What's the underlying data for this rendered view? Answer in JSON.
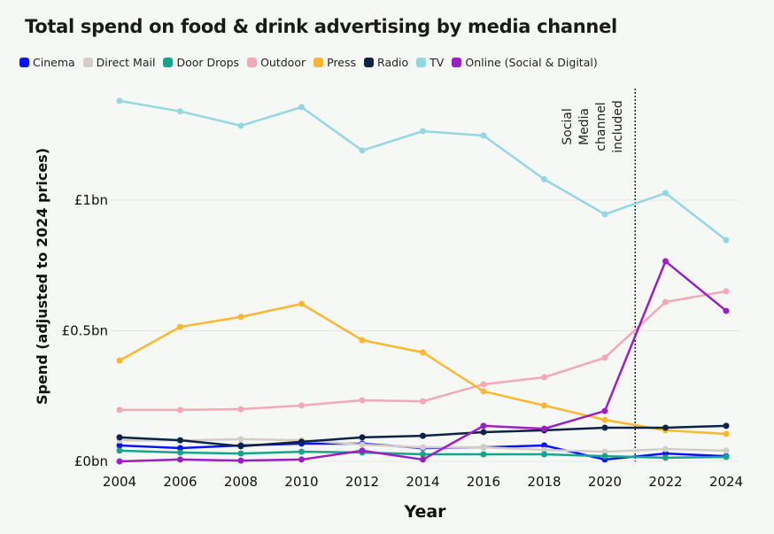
{
  "chart_data": {
    "type": "line",
    "title": "Total spend on food & drink advertising by media channel",
    "xlabel": "Year",
    "ylabel": "Spend (adjusted to 2024 prices)",
    "x": [
      2004,
      2006,
      2008,
      2010,
      2012,
      2014,
      2016,
      2018,
      2020,
      2022,
      2024
    ],
    "xlim": [
      2004,
      2024
    ],
    "ylim": [
      0,
      1.4
    ],
    "yticks": [
      0,
      0.5,
      1
    ],
    "ytick_labels": [
      "£0bn",
      "£0.5bn",
      "£1bn"
    ],
    "xtick_labels": [
      "2004",
      "2006",
      "2008",
      "2010",
      "2012",
      "2014",
      "2016",
      "2018",
      "2020",
      "2022",
      "2024"
    ],
    "grid": "horizontal",
    "legend_placement": "top",
    "annotation": {
      "x": 2021,
      "text_lines": [
        "Social",
        "Media",
        "channel",
        "included"
      ],
      "style": "dotted vertical line"
    },
    "series": [
      {
        "name": "Cinema",
        "color": "#0a14f0",
        "values": [
          0.061,
          0.051,
          0.061,
          0.068,
          0.068,
          0.051,
          0.054,
          0.061,
          0.007,
          0.03,
          0.02
        ]
      },
      {
        "name": "Direct Mail",
        "color": "#d3cdc5",
        "values": [
          0.08,
          0.08,
          0.085,
          0.081,
          0.064,
          0.054,
          0.054,
          0.044,
          0.037,
          0.047,
          0.041
        ]
      },
      {
        "name": "Door Drops",
        "color": "#17a589",
        "values": [
          0.041,
          0.034,
          0.03,
          0.037,
          0.034,
          0.027,
          0.027,
          0.027,
          0.02,
          0.014,
          0.017
        ]
      },
      {
        "name": "Outdoor",
        "color": "#f4a7b9",
        "values": [
          0.197,
          0.197,
          0.2,
          0.214,
          0.234,
          0.23,
          0.295,
          0.322,
          0.397,
          0.61,
          0.651
        ]
      },
      {
        "name": "Press",
        "color": "#fbb731",
        "values": [
          0.386,
          0.515,
          0.553,
          0.603,
          0.464,
          0.417,
          0.268,
          0.214,
          0.159,
          0.119,
          0.105
        ]
      },
      {
        "name": "Radio",
        "color": "#0d2346",
        "values": [
          0.092,
          0.081,
          0.058,
          0.075,
          0.092,
          0.098,
          0.112,
          0.119,
          0.129,
          0.129,
          0.136
        ]
      },
      {
        "name": "TV",
        "color": "#93d7e3",
        "values": [
          1.38,
          1.34,
          1.285,
          1.356,
          1.19,
          1.264,
          1.247,
          1.08,
          0.946,
          1.027,
          0.847
        ]
      },
      {
        "name": "Online (Social & Digital)",
        "color": "#9b1fc1",
        "values": [
          0.0,
          0.007,
          0.003,
          0.007,
          0.041,
          0.007,
          0.136,
          0.125,
          0.193,
          0.766,
          0.576
        ]
      }
    ]
  }
}
